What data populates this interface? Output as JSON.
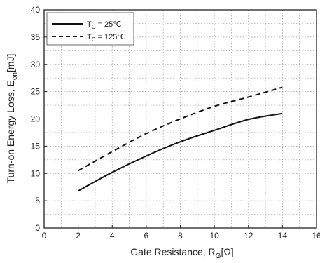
{
  "chart_data": {
    "type": "line",
    "xlabel": "Gate Resistance, R",
    "xlabel_sub": "G",
    "xlabel_unit": "[Ω]",
    "ylabel": "Turn-on Energy Loss, E",
    "ylabel_sub": "on",
    "ylabel_unit": "[mJ]",
    "xlim": [
      0,
      16
    ],
    "ylim": [
      0,
      40
    ],
    "x_ticks": [
      0,
      2,
      4,
      6,
      8,
      10,
      12,
      14,
      16
    ],
    "y_ticks": [
      0,
      5,
      10,
      15,
      20,
      25,
      30,
      35,
      40
    ],
    "grid": true,
    "grid_style": "dotted",
    "legend_position": "top-left",
    "series": [
      {
        "legend_main": "T",
        "legend_sub": "C",
        "legend_value": " = 25℃",
        "line_style": "solid",
        "color": "#111111",
        "x": [
          2,
          4,
          6,
          8,
          10,
          12,
          14
        ],
        "y": [
          6.8,
          10.2,
          13.2,
          15.8,
          17.9,
          19.9,
          21.0
        ]
      },
      {
        "legend_main": "T",
        "legend_sub": "C",
        "legend_value": " = 125℃",
        "line_style": "dashed",
        "color": "#111111",
        "x": [
          2,
          4,
          6,
          8,
          10,
          12,
          14
        ],
        "y": [
          10.5,
          14.0,
          17.3,
          20.0,
          22.3,
          24.0,
          25.8
        ]
      }
    ]
  }
}
